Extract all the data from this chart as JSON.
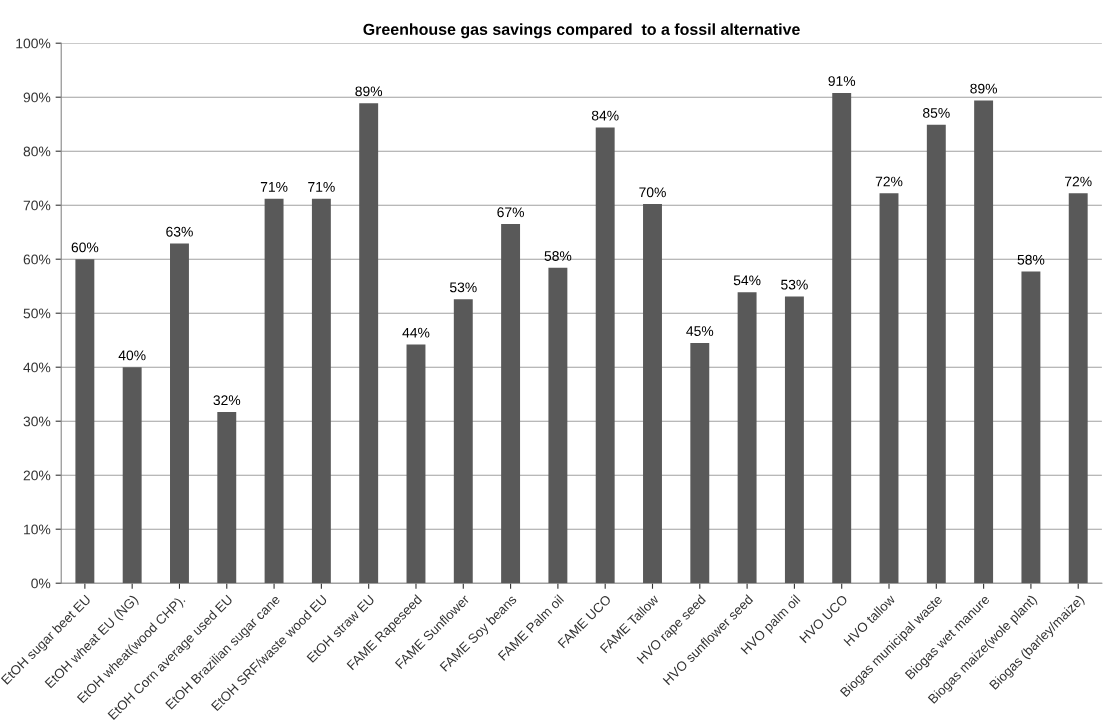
{
  "chart_data": {
    "type": "bar",
    "title": "Greenhouse gas savings compared  to a fossil alternative",
    "categories": [
      "EtOH sugar beet EU",
      "EtOH wheat EU (NG)",
      "EtOH wheat(wood CHP).",
      "EtOH Corn average used EU",
      "EtOH Brazilian sugar cane",
      "EtOH SRF/waste wood EU",
      "EtOH straw EU",
      "FAME Rapeseed",
      "FAME Sunflower",
      "FAME Soy beans",
      "FAME Palm oil",
      "FAME UCO",
      "FAME Tallow",
      "HVO rape seed",
      "HVO sunflower seed",
      "HVO palm oil",
      "HVO UCO",
      "HVO tallow",
      "Biogas municipal waste",
      "Biogas wet manure",
      "Biogas maize(wole plant)",
      "Biogas (barley/maize)"
    ],
    "values": [
      60,
      40,
      62.9,
      31.7,
      71.2,
      71.2,
      88.9,
      44.2,
      52.6,
      66.5,
      58.4,
      84.4,
      70.2,
      44.5,
      53.9,
      53.1,
      90.8,
      72.2,
      84.9,
      89.4,
      57.7,
      72.2
    ],
    "value_labels": [
      "60%",
      "40%",
      "63%",
      "32%",
      "71%",
      "71%",
      "89%",
      "44%",
      "53%",
      "67%",
      "58%",
      "84%",
      "70%",
      "45%",
      "54%",
      "53%",
      "91%",
      "72%",
      "85%",
      "89%",
      "58%",
      "72%"
    ],
    "color": "#595959",
    "ylim": [
      0,
      100
    ],
    "yticks": [
      {
        "value": 0,
        "label": "0%"
      },
      {
        "value": 10,
        "label": "10%"
      },
      {
        "value": 20,
        "label": "20%"
      },
      {
        "value": 30,
        "label": "30%"
      },
      {
        "value": 40,
        "label": "40%"
      },
      {
        "value": 50,
        "label": "50%"
      },
      {
        "value": 60,
        "label": "60%"
      },
      {
        "value": 70,
        "label": "70%"
      },
      {
        "value": 80,
        "label": "80%"
      },
      {
        "value": 90,
        "label": "90%"
      },
      {
        "value": 100,
        "label": "100%"
      }
    ],
    "grid": "y"
  }
}
